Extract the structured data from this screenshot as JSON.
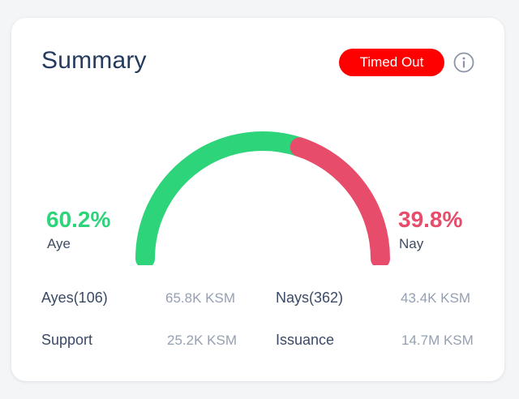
{
  "summary": {
    "title": "Summary",
    "status": {
      "label": "Timed Out",
      "color": "#ff0000"
    },
    "info_icon": "info-icon"
  },
  "tally": {
    "aye": {
      "percent": "60.2%",
      "label": "Aye",
      "fraction": 0.602,
      "color": "#2ed47a"
    },
    "nay": {
      "percent": "39.8%",
      "label": "Nay",
      "fraction": 0.398,
      "color": "#e84c6b"
    }
  },
  "stats": {
    "ayes": {
      "label": "Ayes(106)",
      "value": "65.8K KSM"
    },
    "nays": {
      "label": "Nays(362)",
      "value": "43.4K KSM"
    },
    "support": {
      "label": "Support",
      "value": "25.2K KSM"
    },
    "issuance": {
      "label": "Issuance",
      "value": "14.7M KSM"
    }
  }
}
